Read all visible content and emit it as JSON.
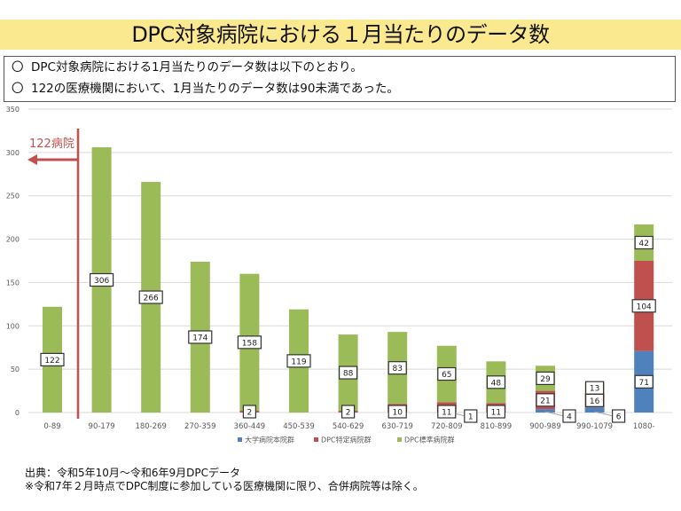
{
  "banner_title": "DPC対象病院における１月当たりのデータ数",
  "summary": [
    {
      "marker": "〇",
      "text": "DPC対象病院における1月当たりのデータ数は以下のとおり。"
    },
    {
      "marker": "〇",
      "text": "122の医療機関において、1月当たりのデータ数は90未満であった。"
    }
  ],
  "annotation": {
    "text": "122病院",
    "color": "#c0504d"
  },
  "chart_data": {
    "type": "bar",
    "stacked": true,
    "categories": [
      "0-89",
      "90-179",
      "180-269",
      "270-359",
      "360-449",
      "450-539",
      "540-629",
      "630-719",
      "720-809",
      "810-899",
      "900-989",
      "990-1079",
      "1080-"
    ],
    "series": [
      {
        "name": "大学病院本院群",
        "color": "#4f81bd",
        "values": [
          0,
          0,
          0,
          0,
          0,
          0,
          0,
          0,
          1,
          0,
          4,
          6,
          71
        ]
      },
      {
        "name": "DPC特定病院群",
        "color": "#c0504d",
        "values": [
          0,
          0,
          0,
          0,
          2,
          0,
          2,
          10,
          11,
          11,
          21,
          16,
          104
        ]
      },
      {
        "name": "DPC標準病院群",
        "color": "#9bbb59",
        "values": [
          122,
          306,
          266,
          174,
          158,
          119,
          88,
          83,
          65,
          48,
          29,
          13,
          42
        ]
      }
    ],
    "ylim": [
      0,
      350
    ],
    "yticks": [
      0,
      50,
      100,
      150,
      200,
      250,
      300,
      350
    ],
    "grid": true,
    "legend": "bottom-right",
    "xlabel": "",
    "ylabel": "",
    "title": ""
  },
  "footer": [
    "出典：令和5年10月～令和6年9月DPCデータ",
    "※令和7年２月時点でDPC制度に参加している医療機関に限り、合併病院等は除く。"
  ]
}
